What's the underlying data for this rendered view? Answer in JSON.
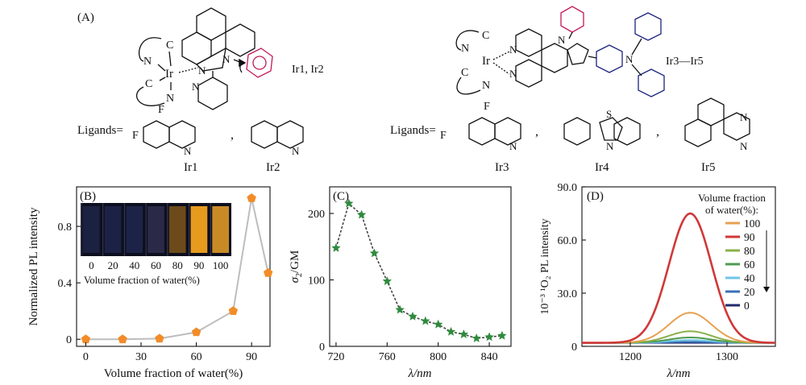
{
  "panel_a": {
    "label": "(A)",
    "left_complex": "Ir1, Ir2",
    "right_complex": "Ir3—Ir5",
    "ligands_label": "Ligands=",
    "comma": ",",
    "names_left": [
      "Ir1",
      "Ir2"
    ],
    "names_right": [
      "Ir3",
      "Ir4",
      "Ir5"
    ],
    "atoms": {
      "ir": "Ir",
      "c": "C",
      "n": "N",
      "f": "F",
      "s": "S"
    },
    "colors": {
      "phenyl_red": "#c2185b",
      "amine_blue": "#1a237e"
    }
  },
  "chart_data": [
    {
      "panel": "(B)",
      "type": "line",
      "xlabel": "Volume fraction of water(%)",
      "ylabel": "Normalized PL intensity",
      "x": [
        0,
        20,
        40,
        60,
        80,
        90,
        99
      ],
      "y": [
        0,
        0,
        0.005,
        0.05,
        0.2,
        1.0,
        0.47
      ],
      "xlim": [
        -5,
        100
      ],
      "ylim": [
        -0.05,
        1.08
      ],
      "xticks": [
        0,
        30,
        60,
        90
      ],
      "yticks": [
        0,
        0.4,
        0.8
      ],
      "ytick_labels": [
        "0",
        "0.4",
        "0.8"
      ],
      "marker_color": "#f28c28",
      "line_color": "#bdbdbd",
      "inset": {
        "vials": [
          "0",
          "20",
          "40",
          "60",
          "80",
          "90",
          "100"
        ],
        "caption": "Volume fraction of water(%)",
        "vial_glow": [
          "#1b2140",
          "#1c2245",
          "#1d2348",
          "#2a2a48",
          "#6d4a1a",
          "#e69a1e",
          "#c98a26"
        ]
      }
    },
    {
      "panel": "(C)",
      "type": "line",
      "xlabel": "λ/nm",
      "ylabel_italic": "σ",
      "ylabel_sub": "2",
      "ylabel_rest": "/GM",
      "x": [
        720,
        730,
        740,
        750,
        760,
        770,
        780,
        790,
        800,
        810,
        820,
        830,
        840,
        850
      ],
      "y": [
        148,
        215,
        198,
        140,
        98,
        55,
        45,
        38,
        33,
        22,
        18,
        12,
        14,
        16
      ],
      "xlim": [
        715,
        857
      ],
      "ylim": [
        0,
        240
      ],
      "xticks": [
        720,
        760,
        800,
        840
      ],
      "yticks": [
        0,
        100,
        200
      ],
      "marker_color": "#2e8b3d",
      "line_color": "#444444"
    },
    {
      "panel": "(D)",
      "type": "line",
      "xlabel": "λ/nm",
      "ylabel": "10⁻³ ¹O₂ PL intensity",
      "xlim": [
        1150,
        1350
      ],
      "ylim": [
        0,
        90
      ],
      "xticks": [
        1200,
        1300
      ],
      "yticks": [
        0,
        30,
        60,
        90
      ],
      "ytick_labels": [
        "0",
        "30.0",
        "60.0",
        "90.0"
      ],
      "legend_title": "Volume fraction of water(%):",
      "peak_center": 1262,
      "series": [
        {
          "name": "100",
          "color": "#e8a050",
          "peak": 19
        },
        {
          "name": "90",
          "color": "#d03838",
          "peak": 75
        },
        {
          "name": "80",
          "color": "#8ab04a",
          "peak": 8.5
        },
        {
          "name": "60",
          "color": "#4f9a4f",
          "peak": 5
        },
        {
          "name": "40",
          "color": "#6ec6e6",
          "peak": 3.5
        },
        {
          "name": "20",
          "color": "#3a6fb8",
          "peak": 2.5
        },
        {
          "name": "0",
          "color": "#1f2a6e",
          "peak": 2
        }
      ]
    }
  ]
}
